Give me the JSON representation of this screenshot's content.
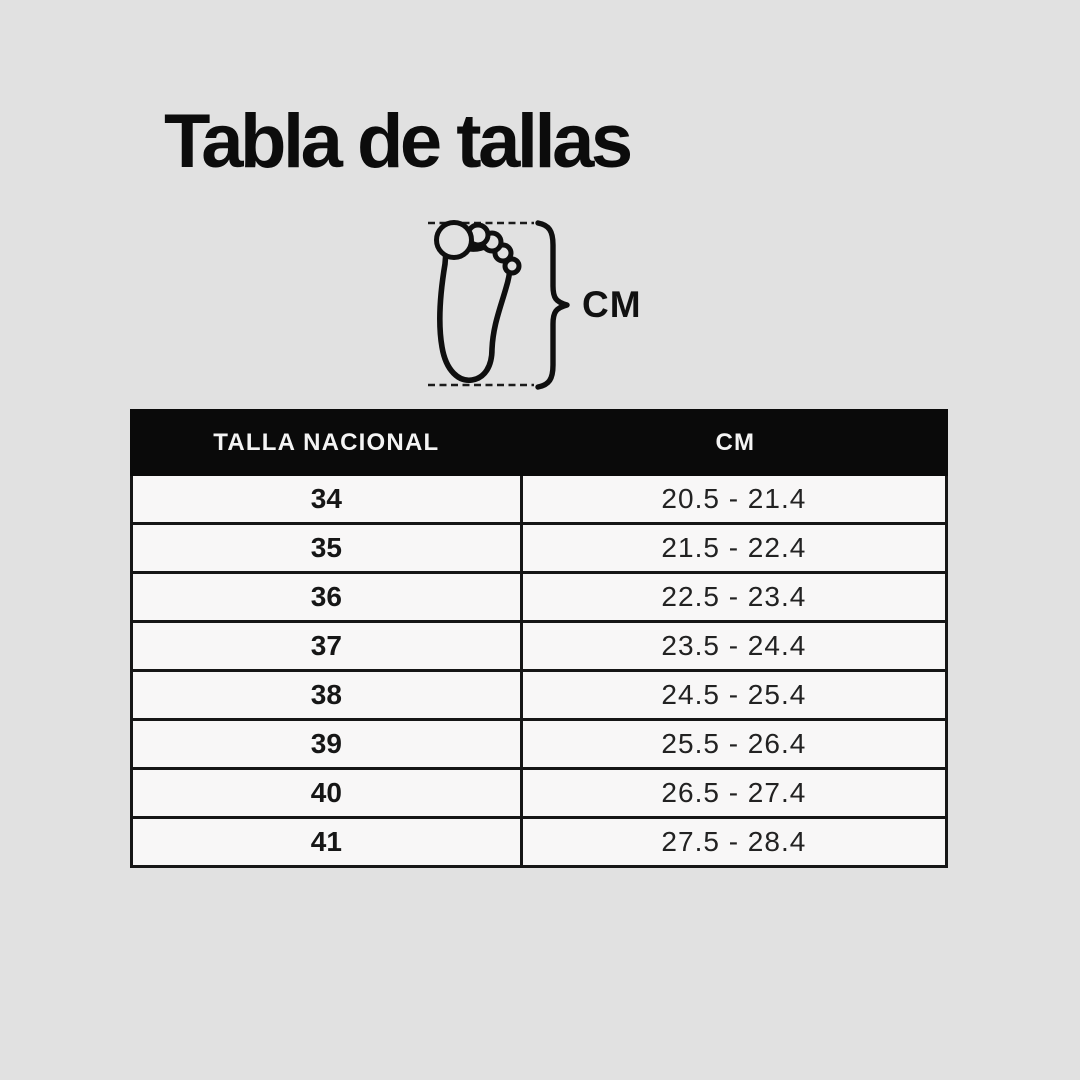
{
  "title": "Tabla de tallas",
  "figure": {
    "label": "CM",
    "foot_icon": "foot-outline-icon",
    "brace_icon": "curly-brace-icon"
  },
  "colors": {
    "background": "#e1e1e1",
    "header_bg": "#0a0a0a",
    "header_text": "#f4f4f4",
    "row_bg": "#f8f7f7",
    "border": "#161616",
    "title_text": "#0c0c0c"
  },
  "chart_data": {
    "type": "table",
    "title": "Tabla de tallas",
    "columns": [
      "TALLA NACIONAL",
      "CM"
    ],
    "rows": [
      [
        "34",
        "20.5 - 21.4"
      ],
      [
        "35",
        "21.5 - 22.4"
      ],
      [
        "36",
        "22.5 - 23.4"
      ],
      [
        "37",
        "23.5 - 24.4"
      ],
      [
        "38",
        "24.5 - 25.4"
      ],
      [
        "39",
        "25.5 - 26.4"
      ],
      [
        "40",
        "26.5 - 27.4"
      ],
      [
        "41",
        "27.5 - 28.4"
      ]
    ]
  }
}
